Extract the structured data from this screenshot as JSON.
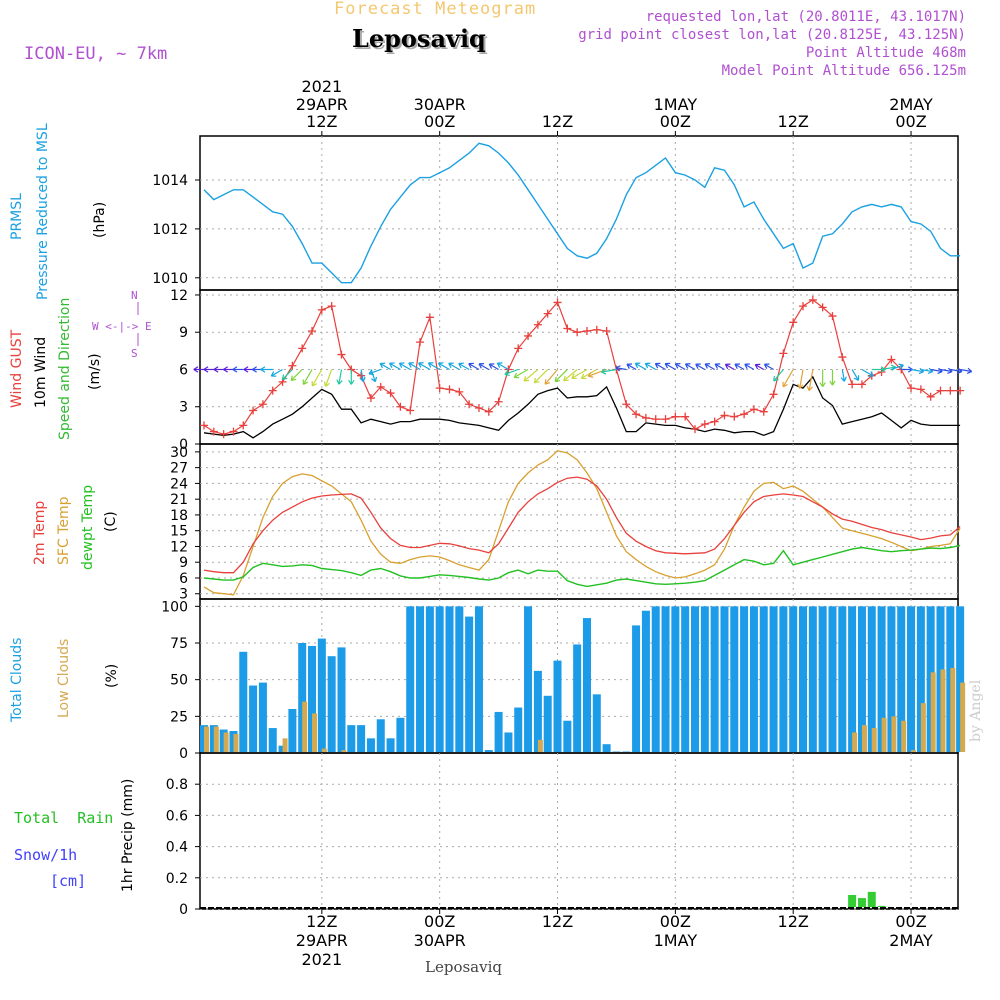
{
  "header": {
    "subtitle": "Forecast Meteogram",
    "location": "Leposaviq",
    "model": "ICON-EU, ~ 7km",
    "requested": "requested lon,lat (20.8011E, 43.1017N)",
    "grid_point": "grid point closest lon,lat (20.8125E, 43.125N)",
    "point_altitude": "Point Altitude 468m",
    "model_altitude": "Model Point Altitude 656.125m",
    "footer_location": "Leposaviq",
    "watermark": "by Angel"
  },
  "colors": {
    "pressure": "#1ba1e2",
    "gust": "#e8403c",
    "wind": "#000000",
    "direction": "#33bb33",
    "temp": "#e8403c",
    "sfc": "#d9a030",
    "dewpt": "#22c022",
    "clouds": "#1b9be8",
    "low_clouds": "#d4a950",
    "rain": "#33cc33",
    "snow": "#4040ff",
    "meta": "#b050d0"
  },
  "time_axis": {
    "top_year": "2021",
    "top_ticks": [
      {
        "hour": 12,
        "date": "29APR",
        "time": "12Z"
      },
      {
        "hour": 24,
        "date": "30APR",
        "time": "00Z"
      },
      {
        "hour": 36,
        "date": "",
        "time": "12Z"
      },
      {
        "hour": 48,
        "date": "1MAY",
        "time": "00Z"
      },
      {
        "hour": 60,
        "date": "",
        "time": "12Z"
      },
      {
        "hour": 72,
        "date": "2MAY",
        "time": "00Z"
      }
    ],
    "bottom_ticks": [
      {
        "hour": 12,
        "time": "12Z",
        "date": "29APR",
        "year": "2021"
      },
      {
        "hour": 24,
        "time": "00Z",
        "date": "30APR",
        "year": ""
      },
      {
        "hour": 36,
        "time": "12Z",
        "date": "",
        "year": ""
      },
      {
        "hour": 48,
        "time": "00Z",
        "date": "1MAY",
        "year": ""
      },
      {
        "hour": 60,
        "time": "12Z",
        "date": "",
        "year": ""
      },
      {
        "hour": 72,
        "time": "00Z",
        "date": "2MAY",
        "year": ""
      }
    ]
  },
  "panel_labels": {
    "pressure": [
      "PRMSL",
      "Pressure Reduced to MSL",
      "(hPa)"
    ],
    "wind": [
      "Wind GUST",
      "10m Wind",
      "Speed and Direction",
      "(m/s)"
    ],
    "compass": [
      "N",
      "S",
      "W <-|-> E"
    ],
    "temp": [
      "2m Temp",
      "SFC Temp",
      "dewpt Temp",
      "(C)"
    ],
    "clouds": [
      "Total Clouds",
      "Low Clouds",
      "(%)"
    ],
    "precip": [
      "Total  Rain",
      "Snow/1h",
      "[cm]",
      "1hr Precip (mm)"
    ]
  },
  "chart_data": [
    {
      "type": "line",
      "panel": "pressure",
      "ylim": [
        1009.5,
        1015.8
      ],
      "yticks": [
        "1010",
        "1012",
        "1014"
      ],
      "x_hours": [
        0,
        1,
        2,
        3,
        4,
        5,
        6,
        7,
        8,
        9,
        10,
        11,
        12,
        13,
        14,
        15,
        16,
        17,
        18,
        19,
        20,
        21,
        22,
        23,
        24,
        25,
        26,
        27,
        28,
        29,
        30,
        31,
        32,
        33,
        34,
        35,
        36,
        37,
        38,
        39,
        40,
        41,
        42,
        43,
        44,
        45,
        46,
        47,
        48,
        49,
        50,
        51,
        52,
        53,
        54,
        55,
        56,
        57,
        58,
        59,
        60,
        61,
        62,
        63,
        64,
        65,
        66,
        67,
        68,
        69,
        70,
        71,
        72,
        73,
        74,
        75,
        76,
        77
      ],
      "series": [
        {
          "values": [
            1013.6,
            1013.2,
            1013.4,
            1013.6,
            1013.6,
            1013.3,
            1013.0,
            1012.7,
            1012.6,
            1012.1,
            1011.4,
            1010.6,
            1010.6,
            1010.2,
            1009.8,
            1009.8,
            1010.4,
            1011.3,
            1012.1,
            1012.8,
            1013.3,
            1013.8,
            1014.1,
            1014.1,
            1014.3,
            1014.5,
            1014.8,
            1015.1,
            1015.5,
            1015.4,
            1015.1,
            1014.7,
            1014.2,
            1013.6,
            1013.0,
            1012.4,
            1011.8,
            1011.2,
            1010.9,
            1010.8,
            1011.0,
            1011.6,
            1012.4,
            1013.4,
            1014.1,
            1014.3,
            1014.6,
            1014.9,
            1014.3,
            1014.2,
            1014.0,
            1013.7,
            1014.5,
            1014.4,
            1013.8,
            1012.9,
            1013.1,
            1012.4,
            1011.8,
            1011.2,
            1011.4,
            1010.4,
            1010.6,
            1011.7,
            1011.8,
            1012.2,
            1012.7,
            1012.9,
            1013.0,
            1012.9,
            1013.0,
            1012.9,
            1012.3,
            1012.2,
            1011.9,
            1011.2,
            1010.9,
            1010.9
          ]
        }
      ]
    },
    {
      "type": "line",
      "panel": "wind",
      "ylim": [
        0,
        12.4
      ],
      "yticks": [
        "0",
        "3",
        "6",
        "9",
        "12"
      ],
      "series": [
        {
          "name": "Wind GUST",
          "values": [
            1.5,
            1.0,
            0.8,
            1.0,
            1.5,
            2.7,
            3.2,
            4.3,
            5.0,
            6.3,
            7.7,
            9.1,
            10.8,
            11.1,
            7.2,
            6.0,
            5.5,
            3.7,
            4.6,
            4.1,
            3.0,
            2.7,
            8.2,
            10.2,
            4.5,
            4.4,
            4.2,
            3.2,
            2.9,
            2.6,
            3.4,
            6.0,
            7.7,
            8.7,
            9.6,
            10.5,
            11.4,
            9.3,
            9.0,
            9.1,
            9.2,
            9.1,
            6.0,
            3.2,
            2.4,
            2.1,
            2.0,
            2.0,
            2.2,
            2.2,
            1.2,
            1.6,
            1.8,
            2.3,
            2.2,
            2.4,
            2.8,
            2.6,
            4.0,
            7.3,
            9.8,
            11.1,
            11.6,
            11.0,
            10.3,
            7.0,
            4.8,
            4.8,
            5.5,
            5.8,
            6.8,
            6.0,
            4.5,
            4.4,
            3.8,
            4.3,
            4.3,
            4.3
          ]
        },
        {
          "name": "10m Wind",
          "values": [
            0.9,
            0.8,
            0.7,
            0.8,
            1.0,
            0.5,
            1.0,
            1.6,
            2.0,
            2.4,
            3.0,
            3.7,
            4.4,
            4.0,
            2.8,
            2.8,
            1.7,
            2.0,
            1.8,
            1.6,
            1.8,
            1.8,
            2.0,
            2.0,
            2.0,
            1.9,
            1.7,
            1.6,
            1.5,
            1.3,
            1.1,
            1.9,
            2.5,
            3.2,
            4.0,
            4.3,
            4.5,
            3.7,
            3.8,
            3.8,
            3.9,
            4.6,
            2.9,
            1.0,
            1.0,
            1.7,
            1.6,
            1.5,
            1.5,
            1.3,
            1.2,
            1.0,
            1.2,
            1.1,
            0.9,
            1.0,
            1.0,
            0.7,
            1.0,
            2.8,
            4.8,
            4.5,
            5.4,
            3.7,
            3.1,
            1.6,
            1.8,
            2.0,
            2.2,
            2.5,
            1.9,
            1.3,
            1.9,
            1.6,
            1.5,
            1.5,
            1.5,
            1.5
          ]
        }
      ],
      "direction_angles": [
        270,
        270,
        270,
        270,
        270,
        270,
        270,
        270,
        240,
        225,
        225,
        210,
        210,
        200,
        190,
        180,
        170,
        160,
        250,
        300,
        300,
        300,
        300,
        300,
        300,
        300,
        300,
        300,
        300,
        300,
        300,
        300,
        250,
        240,
        230,
        225,
        220,
        225,
        230,
        240,
        240,
        250,
        260,
        280,
        300,
        300,
        300,
        300,
        300,
        300,
        300,
        300,
        300,
        300,
        300,
        300,
        300,
        300,
        300,
        220,
        210,
        190,
        190,
        180,
        180,
        170,
        150,
        120,
        90,
        80,
        70,
        90,
        100,
        100,
        100,
        100,
        100,
        100
      ]
    },
    {
      "type": "line",
      "panel": "temp",
      "ylim": [
        2,
        31.5
      ],
      "yticks": [
        "3",
        "6",
        "9",
        "12",
        "15",
        "18",
        "21",
        "24",
        "27",
        "30"
      ],
      "series": [
        {
          "name": "2m Temp",
          "values": [
            7.5,
            7.2,
            7.0,
            7.0,
            9.0,
            12.5,
            15.0,
            17.0,
            18.5,
            19.5,
            20.5,
            21.2,
            21.6,
            21.8,
            21.9,
            22.0,
            21.2,
            18.5,
            15.5,
            13.5,
            12.2,
            11.8,
            11.8,
            12.2,
            12.6,
            12.5,
            12.1,
            11.6,
            11.3,
            10.8,
            12.5,
            15.5,
            18.5,
            20.5,
            22.0,
            23.0,
            24.2,
            25.0,
            25.2,
            24.8,
            23.5,
            21.0,
            17.5,
            14.5,
            13.0,
            12.0,
            11.2,
            10.8,
            10.7,
            10.6,
            10.7,
            10.8,
            11.5,
            13.5,
            16.0,
            18.5,
            20.5,
            21.5,
            21.8,
            22.0,
            21.8,
            21.5,
            20.5,
            19.5,
            18.2,
            17.2,
            16.8,
            16.2,
            15.6,
            15.2,
            14.6,
            14.2,
            13.8,
            13.3,
            13.6,
            14.0,
            14.2,
            15.8
          ]
        },
        {
          "name": "SFC Temp",
          "values": [
            4.3,
            3.2,
            3.0,
            2.8,
            6.5,
            12.0,
            17.5,
            21.5,
            24.0,
            25.3,
            25.8,
            25.5,
            24.5,
            23.5,
            22.0,
            20.5,
            17.0,
            13.0,
            10.5,
            9.0,
            8.8,
            9.5,
            10.0,
            10.2,
            10.0,
            9.3,
            8.5,
            8.0,
            7.5,
            9.5,
            15.0,
            20.5,
            24.0,
            26.0,
            27.5,
            28.5,
            30.2,
            29.8,
            28.5,
            26.0,
            23.0,
            18.5,
            14.0,
            11.0,
            9.5,
            8.2,
            7.2,
            6.5,
            6.0,
            6.2,
            6.8,
            7.5,
            8.5,
            11.5,
            16.0,
            19.5,
            22.5,
            24.0,
            24.2,
            23.0,
            23.5,
            22.5,
            21.0,
            19.5,
            17.5,
            15.5,
            15.0,
            14.5,
            14.0,
            13.5,
            12.8,
            12.0,
            11.2,
            11.5,
            12.0,
            12.2,
            12.5,
            15.5
          ]
        },
        {
          "name": "dewpt Temp",
          "values": [
            6.0,
            5.8,
            5.6,
            5.6,
            6.2,
            8.0,
            8.8,
            8.5,
            8.2,
            8.3,
            8.5,
            8.4,
            7.8,
            7.6,
            7.4,
            7.0,
            6.5,
            7.5,
            7.8,
            7.2,
            6.4,
            6.0,
            6.0,
            6.3,
            6.6,
            6.5,
            6.3,
            6.1,
            5.8,
            5.6,
            6.0,
            7.0,
            7.5,
            6.8,
            7.5,
            7.3,
            7.3,
            5.5,
            4.8,
            4.4,
            4.7,
            5.0,
            5.6,
            5.8,
            5.5,
            5.2,
            4.9,
            4.8,
            4.9,
            5.0,
            5.2,
            5.5,
            6.5,
            7.5,
            8.5,
            9.5,
            9.2,
            8.5,
            8.8,
            11.2,
            8.5,
            9.0,
            9.5,
            10.0,
            10.5,
            11.0,
            11.5,
            11.8,
            11.5,
            11.2,
            11.0,
            11.2,
            11.3,
            11.5,
            11.7,
            11.6,
            11.8,
            12.2
          ]
        }
      ]
    },
    {
      "type": "bar",
      "panel": "clouds",
      "ylim": [
        0,
        105
      ],
      "yticks": [
        "0",
        "25",
        "50",
        "75",
        "100"
      ],
      "series": [
        {
          "name": "Total Clouds",
          "values": [
            19,
            19,
            16,
            15,
            69,
            46,
            48,
            17,
            5,
            30,
            75,
            73,
            78,
            66,
            72,
            19,
            19,
            10,
            23,
            10,
            24,
            100,
            100,
            100,
            100,
            100,
            100,
            93,
            100,
            2,
            28,
            14,
            31,
            100,
            56,
            39,
            63,
            22,
            74,
            92,
            40,
            6,
            1,
            1,
            87,
            97,
            100,
            100,
            100,
            100,
            100,
            100,
            100,
            100,
            100,
            100,
            100,
            100,
            100,
            100,
            100,
            100,
            100,
            100,
            100,
            100,
            100,
            100,
            100,
            100,
            100,
            100,
            100,
            100,
            100,
            100,
            100,
            100
          ]
        },
        {
          "name": "Low Clouds",
          "values": [
            18,
            18,
            14,
            13,
            0,
            0,
            0,
            0,
            10,
            0,
            35,
            27,
            3,
            0,
            2,
            0,
            0,
            0,
            0,
            0,
            0,
            0,
            0,
            0,
            0,
            0,
            0,
            0,
            0,
            0,
            0,
            0,
            0,
            0,
            9,
            0,
            0,
            0,
            0,
            0,
            0,
            0,
            0,
            0,
            0,
            0,
            0,
            0,
            0,
            0,
            0,
            0,
            0,
            0,
            0,
            0,
            0,
            0,
            0,
            0,
            0,
            0,
            0,
            0,
            0,
            0,
            14,
            19,
            17,
            24,
            25,
            22,
            2,
            34,
            55,
            57,
            58,
            48
          ]
        }
      ]
    },
    {
      "type": "bar",
      "panel": "precip",
      "ylim": [
        0,
        1.0
      ],
      "yticks": [
        "0",
        "0.2",
        "0.4",
        "0.6",
        "0.8"
      ],
      "series": [
        {
          "name": "Total Rain",
          "values": [
            0,
            0,
            0,
            0,
            0,
            0,
            0,
            0,
            0,
            0,
            0,
            0,
            0,
            0,
            0,
            0,
            0,
            0,
            0,
            0,
            0,
            0,
            0,
            0,
            0,
            0,
            0,
            0,
            0,
            0,
            0,
            0,
            0,
            0,
            0,
            0,
            0,
            0,
            0,
            0,
            0,
            0,
            0,
            0,
            0,
            0,
            0,
            0,
            0,
            0,
            0,
            0,
            0,
            0,
            0,
            0,
            0,
            0,
            0,
            0,
            0,
            0,
            0,
            0,
            0,
            0,
            0.09,
            0.07,
            0.11,
            0.02,
            0,
            0,
            0,
            0,
            0,
            0,
            0,
            0
          ]
        }
      ]
    }
  ]
}
